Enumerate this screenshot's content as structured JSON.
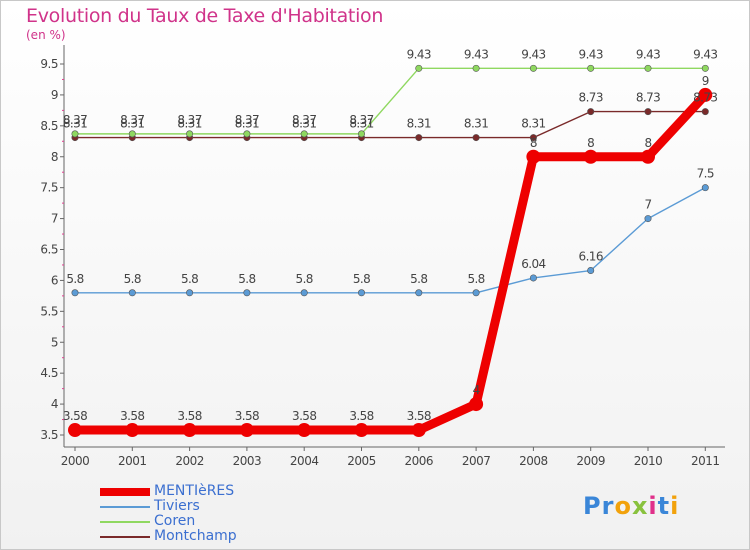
{
  "chart_data": {
    "type": "line",
    "title": "Evolution du Taux de Taxe d'Habitation",
    "unit_label": "(en %)",
    "xlabel": "",
    "ylabel": "",
    "ylim": [
      3.5,
      9.5
    ],
    "yticks": [
      "3.5",
      "4",
      "4.5",
      "5",
      "5.5",
      "6",
      "6.5",
      "7",
      "7.5",
      "8",
      "8.5",
      "9",
      "9.5"
    ],
    "x": [
      "2000",
      "2001",
      "2002",
      "2003",
      "2004",
      "2005",
      "2006",
      "2007",
      "2008",
      "2009",
      "2010",
      "2011"
    ],
    "grid": false,
    "series": [
      {
        "name": "MENTIèRES",
        "color": "#ee0000",
        "values": [
          3.58,
          3.58,
          3.58,
          3.58,
          3.58,
          3.58,
          3.58,
          4,
          8,
          8,
          8,
          9
        ],
        "labels": [
          "3.58",
          "3.58",
          "3.58",
          "3.58",
          "3.58",
          "3.58",
          "3.58",
          "4",
          "8",
          "8",
          "8",
          "9"
        ],
        "thick": true
      },
      {
        "name": "Tiviers",
        "color": "#5b9bd5",
        "values": [
          5.8,
          5.8,
          5.8,
          5.8,
          5.8,
          5.8,
          5.8,
          5.8,
          6.04,
          6.16,
          7,
          7.5
        ],
        "labels": [
          "5.8",
          "5.8",
          "5.8",
          "5.8",
          "5.8",
          "5.8",
          "5.8",
          "5.8",
          "6.04",
          "6.16",
          "7",
          "7.5"
        ]
      },
      {
        "name": "Coren",
        "color": "#8fd860",
        "values": [
          8.37,
          8.37,
          8.37,
          8.37,
          8.37,
          8.37,
          9.43,
          9.43,
          9.43,
          9.43,
          9.43,
          9.43
        ],
        "labels": [
          "8.37",
          "8.37",
          "8.37",
          "8.37",
          "8.37",
          "8.37",
          "9.43",
          "9.43",
          "9.43",
          "9.43",
          "9.43",
          "9.43"
        ]
      },
      {
        "name": "Montchamp",
        "color": "#7a2a2a",
        "values": [
          8.31,
          8.31,
          8.31,
          8.31,
          8.31,
          8.31,
          8.31,
          8.31,
          8.31,
          8.73,
          8.73,
          8.73
        ],
        "labels": [
          "8.31",
          "8.31",
          "8.31",
          "8.31",
          "8.31",
          "8.31",
          "8.31",
          "8.31",
          "8.31",
          "8.73",
          "8.73",
          "8.73"
        ]
      }
    ]
  },
  "logo_text": "Proxiti"
}
